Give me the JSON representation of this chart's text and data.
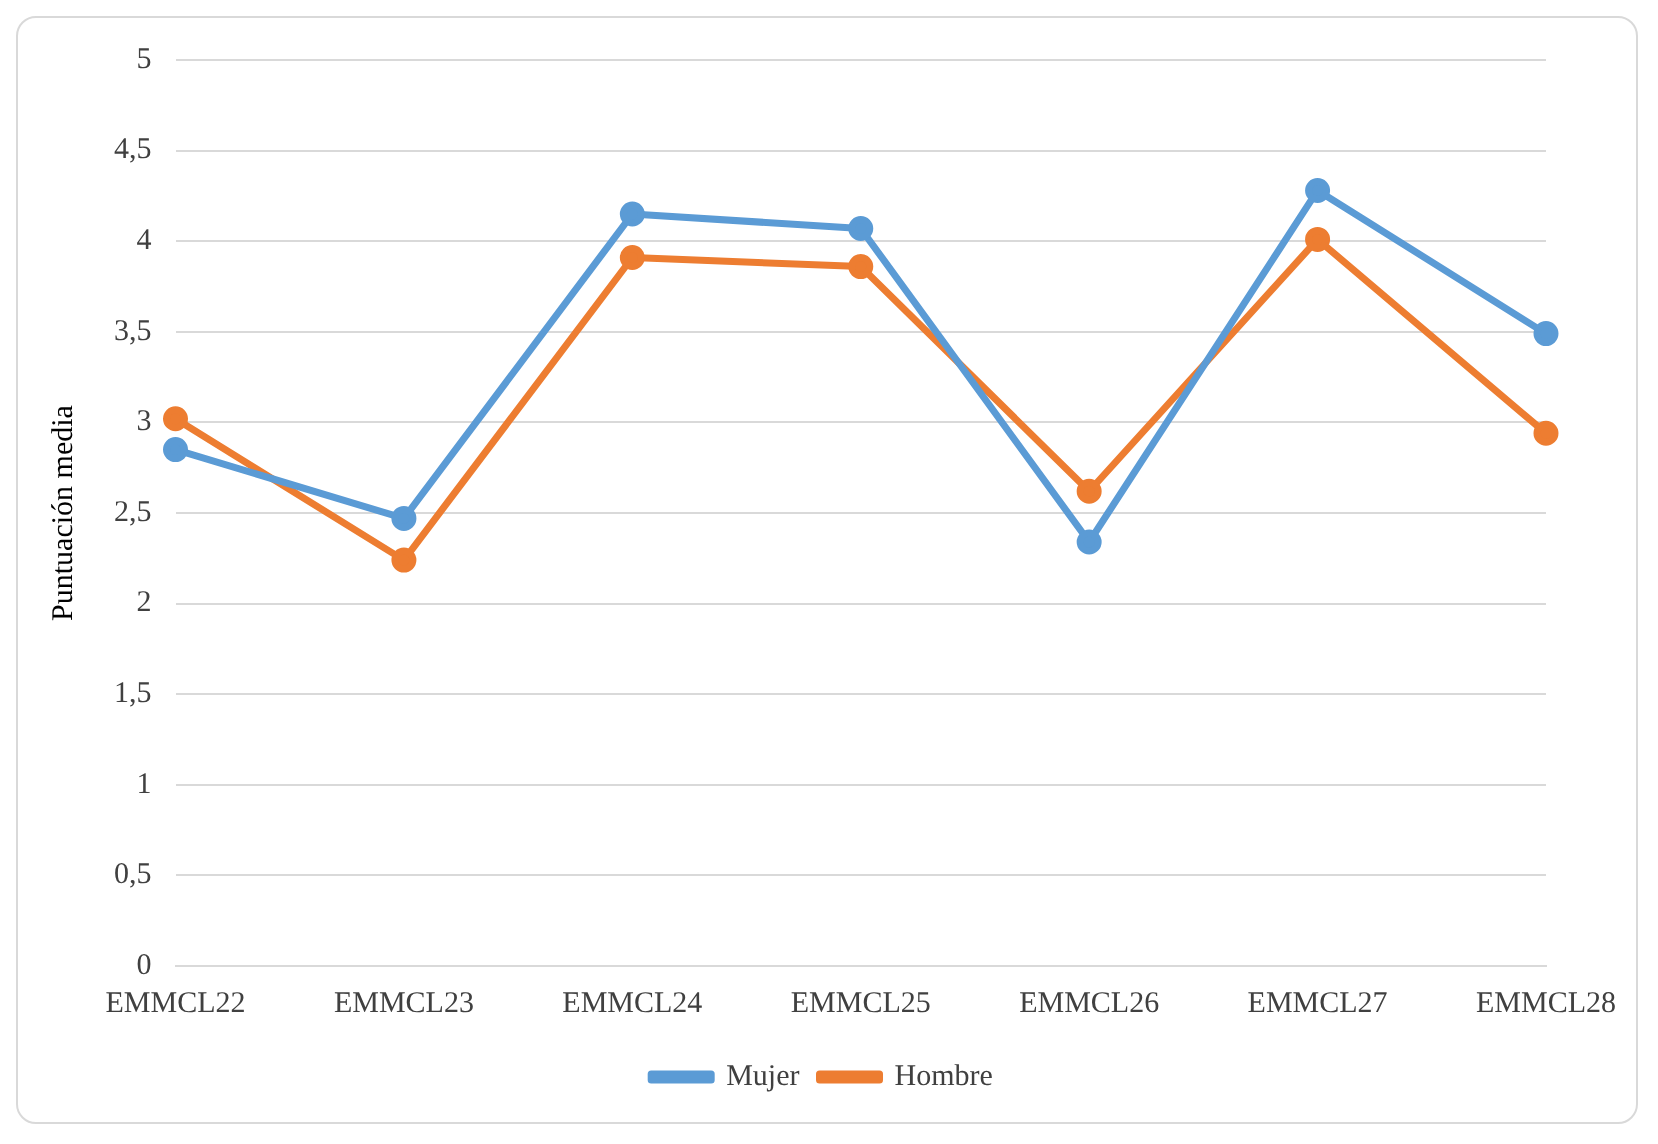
{
  "chart_data": {
    "type": "line",
    "ylabel": "Puntuación media",
    "categories": [
      "EMMCL22",
      "EMMCL23",
      "EMMCL24",
      "EMMCL25",
      "EMMCL26",
      "EMMCL27",
      "EMMCL28"
    ],
    "series": [
      {
        "name": "Mujer",
        "color": "#5b9bd5",
        "values": [
          2.85,
          2.47,
          4.15,
          4.07,
          2.34,
          4.28,
          3.49
        ]
      },
      {
        "name": "Hombre",
        "color": "#ed7d31",
        "values": [
          3.02,
          2.24,
          3.91,
          3.86,
          2.62,
          4.01,
          2.94
        ]
      }
    ],
    "ylim": [
      0,
      5
    ],
    "yticks": [
      0,
      {
        "value": 0.5,
        "label": "0,5"
      },
      1,
      {
        "value": 1.5,
        "label": "1,5"
      },
      2,
      {
        "value": 2.5,
        "label": "2,5"
      },
      3,
      {
        "value": 3.5,
        "label": "3,5"
      },
      4,
      {
        "value": 4.5,
        "label": "4,5"
      },
      5
    ],
    "grid": "y",
    "legend": "bottom",
    "marker": "circle",
    "line_style": "solid"
  }
}
